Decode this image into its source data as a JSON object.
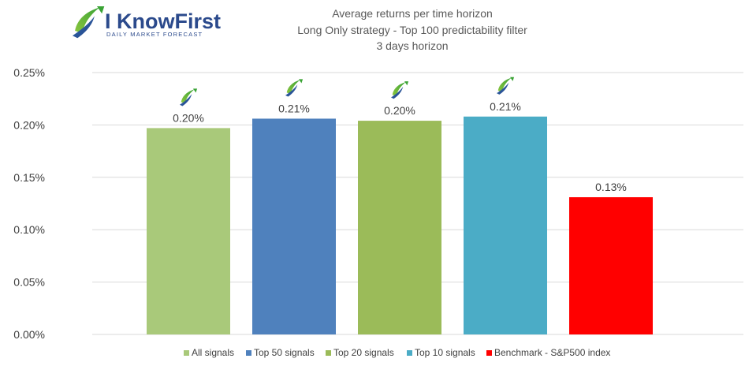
{
  "logo": {
    "brand": "I KnowFirst",
    "tagline": "DAILY MARKET FORECAST"
  },
  "chart_data": {
    "type": "bar",
    "title_lines": [
      "Average returns per time horizon",
      "Long Only strategy - Top 100 predictability filter",
      "3 days horizon"
    ],
    "categories": [
      "All signals",
      "Top 50 signals",
      "Top 20 signals",
      "Top 10 signals",
      "Benchmark - S&P500 index"
    ],
    "values": [
      0.197,
      0.206,
      0.204,
      0.208,
      0.131
    ],
    "data_labels": [
      "0.20%",
      "0.21%",
      "0.20%",
      "0.21%",
      "0.13%"
    ],
    "colors": [
      "#a9c97a",
      "#4f81bd",
      "#9bbb59",
      "#4bacc6",
      "#ff0000"
    ],
    "logo_marker_on": [
      true,
      true,
      true,
      true,
      false
    ],
    "ylim": [
      0,
      0.25
    ],
    "yticks": [
      0,
      0.05,
      0.1,
      0.15,
      0.2,
      0.25
    ],
    "ytick_labels": [
      "0.00%",
      "0.05%",
      "0.10%",
      "0.15%",
      "0.20%",
      "0.25%"
    ],
    "unit": "%",
    "grid": true,
    "legend_position": "bottom",
    "xlabel": "",
    "ylabel": ""
  }
}
